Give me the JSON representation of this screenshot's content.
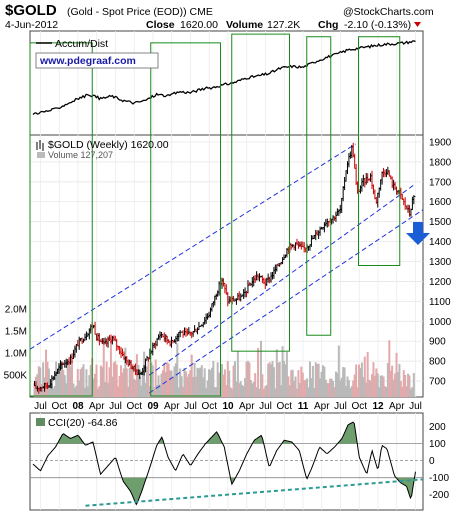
{
  "header": {
    "symbol": "$GOLD",
    "description": "(Gold - Spot Price (EOD)) CME",
    "watermark": "@StockCharts.com",
    "date": "4-Jun-2012",
    "close_label": "Close",
    "close_value": "1620.00",
    "volume_label": "Volume",
    "volume_value": "127.2K",
    "change_label": "Chg",
    "change_value": "-2.10 (-0.13%)",
    "down_color": "#cc0000"
  },
  "chart_data": {
    "type": "line",
    "ad_legend": "Accum/Dist",
    "website": "www.pdegraaf.com",
    "price_legend": "$GOLD (Weekly) 1620.00",
    "volume_legend": "Volume 127,207",
    "cci_legend": "CCI(20) -64.86",
    "x_labels": [
      "Jul",
      "Oct",
      "08",
      "Apr",
      "Jul",
      "Oct",
      "09",
      "Apr",
      "Jul",
      "Oct",
      "10",
      "Apr",
      "Jul",
      "Oct",
      "11",
      "Apr",
      "Jul",
      "Oct",
      "12",
      "Apr",
      "Jul"
    ],
    "x_bold": [
      "08",
      "09",
      "10",
      "11",
      "12"
    ],
    "x_dates": [
      2007.5,
      2007.75,
      2008.0,
      2008.25,
      2008.5,
      2008.75,
      2009.0,
      2009.25,
      2009.5,
      2009.75,
      2010.0,
      2010.25,
      2010.5,
      2010.75,
      2011.0,
      2011.25,
      2011.5,
      2011.75,
      2012.0,
      2012.25,
      2012.5
    ],
    "x_range": [
      2007.36,
      2012.6
    ],
    "price_axis": {
      "ticks": [
        700,
        800,
        900,
        1000,
        1100,
        1200,
        1300,
        1400,
        1500,
        1600,
        1700,
        1800,
        1900
      ],
      "range": [
        620,
        1935
      ]
    },
    "volume_axis": {
      "ticks": [
        "2.0M",
        "1.5M",
        "1.0M",
        "500K"
      ],
      "tick_values": [
        2000000,
        1500000,
        1000000,
        500000
      ],
      "range": [
        0,
        2500000
      ]
    },
    "cci_axis": {
      "ticks": [
        200,
        100,
        0,
        -100,
        -200
      ],
      "range": [
        -290,
        280
      ]
    },
    "price_series": {
      "name": "$GOLD",
      "points": [
        [
          2007.42,
          665
        ],
        [
          2007.5,
          670
        ],
        [
          2007.6,
          680
        ],
        [
          2007.7,
          740
        ],
        [
          2007.8,
          790
        ],
        [
          2007.9,
          810
        ],
        [
          2008.0,
          890
        ],
        [
          2008.1,
          930
        ],
        [
          2008.2,
          985
        ],
        [
          2008.25,
          920
        ],
        [
          2008.35,
          880
        ],
        [
          2008.45,
          920
        ],
        [
          2008.55,
          860
        ],
        [
          2008.65,
          800
        ],
        [
          2008.75,
          760
        ],
        [
          2008.83,
          730
        ],
        [
          2008.92,
          810
        ],
        [
          2009.0,
          870
        ],
        [
          2009.1,
          940
        ],
        [
          2009.15,
          920
        ],
        [
          2009.25,
          890
        ],
        [
          2009.35,
          950
        ],
        [
          2009.45,
          930
        ],
        [
          2009.55,
          950
        ],
        [
          2009.65,
          990
        ],
        [
          2009.75,
          1040
        ],
        [
          2009.85,
          1150
        ],
        [
          2009.92,
          1210
        ],
        [
          2010.0,
          1100
        ],
        [
          2010.1,
          1110
        ],
        [
          2010.2,
          1125
        ],
        [
          2010.3,
          1190
        ],
        [
          2010.4,
          1230
        ],
        [
          2010.5,
          1190
        ],
        [
          2010.6,
          1240
        ],
        [
          2010.7,
          1300
        ],
        [
          2010.8,
          1370
        ],
        [
          2010.9,
          1390
        ],
        [
          2011.0,
          1360
        ],
        [
          2011.08,
          1390
        ],
        [
          2011.2,
          1450
        ],
        [
          2011.3,
          1500
        ],
        [
          2011.4,
          1520
        ],
        [
          2011.5,
          1560
        ],
        [
          2011.58,
          1780
        ],
        [
          2011.66,
          1880
        ],
        [
          2011.72,
          1640
        ],
        [
          2011.8,
          1700
        ],
        [
          2011.9,
          1730
        ],
        [
          2011.97,
          1590
        ],
        [
          2012.05,
          1740
        ],
        [
          2012.12,
          1760
        ],
        [
          2012.2,
          1680
        ],
        [
          2012.28,
          1650
        ],
        [
          2012.35,
          1590
        ],
        [
          2012.42,
          1540
        ],
        [
          2012.47,
          1620
        ]
      ]
    },
    "channel_lines": [
      {
        "name": "upper-channel",
        "points": [
          [
            2007.36,
            860
          ],
          [
            2011.7,
            1890
          ]
        ]
      },
      {
        "name": "middle-channel",
        "points": [
          [
            2008.95,
            730
          ],
          [
            2012.5,
            1690
          ]
        ]
      },
      {
        "name": "lower-channel",
        "points": [
          [
            2008.95,
            640
          ],
          [
            2012.6,
            1560
          ]
        ]
      }
    ],
    "highlight_boxes": [
      {
        "x0": 2007.36,
        "x1": 2008.19,
        "y_top": 101,
        "y_bottom": 1
      },
      {
        "x0": 2008.97,
        "x1": 2009.9,
        "y_top": 101,
        "y_bottom": 1
      },
      {
        "x0": 2010.05,
        "x1": 2010.82,
        "y_top": 111,
        "y_bottom": 25
      },
      {
        "x0": 2011.05,
        "x1": 2011.37,
        "y_top": 108,
        "y_bottom": 33
      },
      {
        "x0": 2011.74,
        "x1": 2012.29,
        "y_top": 108,
        "y_bottom": 68
      }
    ],
    "ad_series": {
      "name": "Accum/Dist",
      "points": [
        [
          2007.4,
          20
        ],
        [
          2007.55,
          22
        ],
        [
          2007.7,
          25
        ],
        [
          2007.85,
          31
        ],
        [
          2008.0,
          37
        ],
        [
          2008.15,
          42
        ],
        [
          2008.3,
          37
        ],
        [
          2008.45,
          40
        ],
        [
          2008.6,
          35
        ],
        [
          2008.75,
          32
        ],
        [
          2008.9,
          35
        ],
        [
          2009.05,
          42
        ],
        [
          2009.2,
          40
        ],
        [
          2009.35,
          45
        ],
        [
          2009.5,
          44
        ],
        [
          2009.65,
          48
        ],
        [
          2009.8,
          50
        ],
        [
          2009.95,
          53
        ],
        [
          2010.1,
          56
        ],
        [
          2010.25,
          61
        ],
        [
          2010.4,
          63
        ],
        [
          2010.55,
          66
        ],
        [
          2010.7,
          72
        ],
        [
          2010.85,
          74
        ],
        [
          2011.0,
          73
        ],
        [
          2011.15,
          79
        ],
        [
          2011.3,
          84
        ],
        [
          2011.45,
          88
        ],
        [
          2011.6,
          93
        ],
        [
          2011.75,
          95
        ],
        [
          2011.9,
          97
        ],
        [
          2012.05,
          99
        ],
        [
          2012.2,
          100
        ],
        [
          2012.35,
          101
        ],
        [
          2012.5,
          103
        ]
      ]
    },
    "cci_series": {
      "name": "CCI(20)",
      "points": [
        [
          2007.4,
          -20
        ],
        [
          2007.5,
          -60
        ],
        [
          2007.6,
          30
        ],
        [
          2007.7,
          80
        ],
        [
          2007.8,
          160
        ],
        [
          2007.9,
          130
        ],
        [
          2008.0,
          150
        ],
        [
          2008.1,
          90
        ],
        [
          2008.2,
          110
        ],
        [
          2008.3,
          -80
        ],
        [
          2008.4,
          -30
        ],
        [
          2008.5,
          20
        ],
        [
          2008.6,
          -120
        ],
        [
          2008.7,
          -180
        ],
        [
          2008.78,
          -260
        ],
        [
          2008.85,
          -180
        ],
        [
          2008.95,
          -50
        ],
        [
          2009.05,
          90
        ],
        [
          2009.12,
          140
        ],
        [
          2009.2,
          20
        ],
        [
          2009.3,
          -60
        ],
        [
          2009.4,
          40
        ],
        [
          2009.5,
          -30
        ],
        [
          2009.6,
          40
        ],
        [
          2009.7,
          100
        ],
        [
          2009.85,
          170
        ],
        [
          2009.95,
          80
        ],
        [
          2010.05,
          -140
        ],
        [
          2010.15,
          -60
        ],
        [
          2010.25,
          40
        ],
        [
          2010.35,
          120
        ],
        [
          2010.45,
          150
        ],
        [
          2010.55,
          -40
        ],
        [
          2010.65,
          60
        ],
        [
          2010.75,
          120
        ],
        [
          2010.85,
          110
        ],
        [
          2010.95,
          60
        ],
        [
          2011.05,
          -110
        ],
        [
          2011.12,
          -40
        ],
        [
          2011.22,
          80
        ],
        [
          2011.32,
          40
        ],
        [
          2011.42,
          80
        ],
        [
          2011.52,
          130
        ],
        [
          2011.6,
          210
        ],
        [
          2011.68,
          230
        ],
        [
          2011.75,
          20
        ],
        [
          2011.85,
          -80
        ],
        [
          2011.92,
          60
        ],
        [
          2012.0,
          -60
        ],
        [
          2012.05,
          90
        ],
        [
          2012.12,
          70
        ],
        [
          2012.22,
          -90
        ],
        [
          2012.3,
          -130
        ],
        [
          2012.38,
          -150
        ],
        [
          2012.44,
          -230
        ],
        [
          2012.5,
          -65
        ]
      ]
    },
    "cci_trendline": {
      "points": [
        [
          2008.1,
          -265
        ],
        [
          2012.6,
          -110
        ]
      ]
    },
    "colors": {
      "up": "#000000",
      "down": "#cc0000",
      "volume_up": "#b9b9b9",
      "volume_down": "#e3a9ab",
      "channel": "#2233dd",
      "box": "#1a8a1a",
      "cci_fill": "#6e9d6e",
      "cci_trend": "#2b9a93",
      "arrow": "#1a5ed6"
    }
  }
}
